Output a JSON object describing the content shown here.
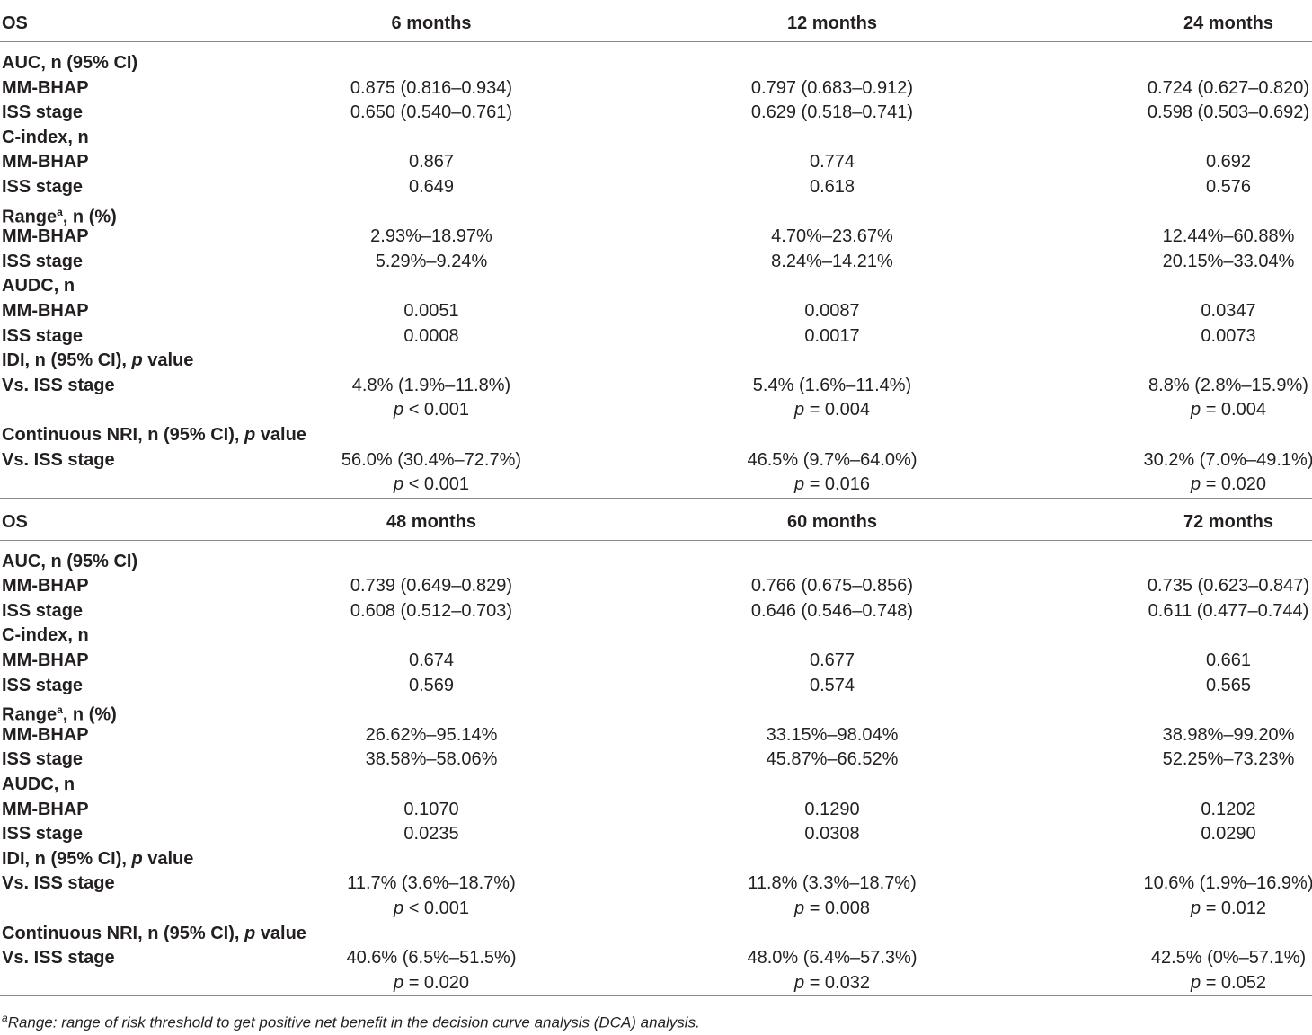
{
  "blocks": [
    {
      "header": [
        "OS",
        "6 months",
        "12 months",
        "24 months"
      ],
      "sections": [
        {
          "title": "AUC, n (95% CI)",
          "rows": [
            {
              "label": "MM-BHAP",
              "values": [
                "0.875 (0.816–0.934)",
                "0.797 (0.683–0.912)",
                "0.724 (0.627–0.820)"
              ]
            },
            {
              "label": "ISS stage",
              "values": [
                "0.650 (0.540–0.761)",
                "0.629 (0.518–0.741)",
                "0.598 (0.503–0.692)"
              ]
            }
          ]
        },
        {
          "title": "C-index, n",
          "rows": [
            {
              "label": "MM-BHAP",
              "values": [
                "0.867",
                "0.774",
                "0.692"
              ]
            },
            {
              "label": "ISS stage",
              "values": [
                "0.649",
                "0.618",
                "0.576"
              ]
            }
          ]
        },
        {
          "title": "Range",
          "title_sup": "a",
          "title_suffix": ", n (%)",
          "rows": [
            {
              "label": "MM-BHAP",
              "values": [
                "2.93%–18.97%",
                "4.70%–23.67%",
                "12.44%–60.88%"
              ]
            },
            {
              "label": "ISS stage",
              "values": [
                "5.29%–9.24%",
                "8.24%–14.21%",
                "20.15%–33.04%"
              ]
            }
          ]
        },
        {
          "title": "AUDC, n",
          "rows": [
            {
              "label": "MM-BHAP",
              "values": [
                "0.0051",
                "0.0087",
                "0.0347"
              ]
            },
            {
              "label": "ISS stage",
              "values": [
                "0.0008",
                "0.0017",
                "0.0073"
              ]
            }
          ]
        },
        {
          "title": "IDI, n (95% CI), ",
          "title_italic": "p",
          "title_suffix": " value",
          "rows": [
            {
              "label": "Vs. ISS stage",
              "values": [
                "4.8% (1.9%–11.8%)",
                "5.4% (1.6%–11.4%)",
                "8.8% (2.8%–15.9%)"
              ]
            },
            {
              "label": "",
              "pvalues": [
                "< 0.001",
                "= 0.004",
                "= 0.004"
              ]
            }
          ]
        },
        {
          "title": "Continuous NRI, n (95% CI), ",
          "title_italic": "p",
          "title_suffix": " value",
          "rows": [
            {
              "label": "Vs. ISS stage",
              "values": [
                "56.0% (30.4%–72.7%)",
                "46.5% (9.7%–64.0%)",
                "30.2% (7.0%–49.1%)"
              ]
            },
            {
              "label": "",
              "pvalues": [
                "< 0.001",
                "= 0.016",
                "= 0.020"
              ]
            }
          ]
        }
      ]
    },
    {
      "header": [
        "OS",
        "48 months",
        "60 months",
        "72 months"
      ],
      "sections": [
        {
          "title": "AUC, n (95% CI)",
          "rows": [
            {
              "label": "MM-BHAP",
              "values": [
                "0.739 (0.649–0.829)",
                "0.766 (0.675–0.856)",
                "0.735 (0.623–0.847)"
              ]
            },
            {
              "label": "ISS stage",
              "values": [
                "0.608 (0.512–0.703)",
                "0.646 (0.546–0.748)",
                "0.611 (0.477–0.744)"
              ]
            }
          ]
        },
        {
          "title": "C-index, n",
          "rows": [
            {
              "label": "MM-BHAP",
              "values": [
                "0.674",
                "0.677",
                "0.661"
              ]
            },
            {
              "label": "ISS stage",
              "values": [
                "0.569",
                "0.574",
                "0.565"
              ]
            }
          ]
        },
        {
          "title": "Range",
          "title_sup": "a",
          "title_suffix": ", n (%)",
          "rows": [
            {
              "label": "MM-BHAP",
              "values": [
                "26.62%–95.14%",
                "33.15%–98.04%",
                "38.98%–99.20%"
              ]
            },
            {
              "label": "ISS stage",
              "values": [
                "38.58%–58.06%",
                "45.87%–66.52%",
                "52.25%–73.23%"
              ]
            }
          ]
        },
        {
          "title": "AUDC, n",
          "rows": [
            {
              "label": "MM-BHAP",
              "values": [
                "0.1070",
                "0.1290",
                "0.1202"
              ]
            },
            {
              "label": "ISS stage",
              "values": [
                "0.0235",
                "0.0308",
                "0.0290"
              ]
            }
          ]
        },
        {
          "title": "IDI, n (95% CI), ",
          "title_italic": "p",
          "title_suffix": " value",
          "rows": [
            {
              "label": "Vs. ISS stage",
              "values": [
                "11.7% (3.6%–18.7%)",
                "11.8% (3.3%–18.7%)",
                "10.6% (1.9%–16.9%)"
              ]
            },
            {
              "label": "",
              "pvalues": [
                "< 0.001",
                "= 0.008",
                "= 0.012"
              ]
            }
          ]
        },
        {
          "title": "Continuous NRI, n (95% CI), ",
          "title_italic": "p",
          "title_suffix": " value",
          "rows": [
            {
              "label": "Vs. ISS stage",
              "values": [
                "40.6% (6.5%–51.5%)",
                "48.0% (6.4%–57.3%)",
                "42.5% (0%–57.1%)"
              ]
            },
            {
              "label": "",
              "pvalues": [
                "= 0.020",
                "= 0.032",
                "= 0.052"
              ]
            }
          ]
        }
      ]
    }
  ],
  "pvalue_symbol": "p",
  "footnote": {
    "sup": "a",
    "text": "Range: range of risk threshold to get positive net benefit in the decision curve analysis (DCA) analysis."
  }
}
